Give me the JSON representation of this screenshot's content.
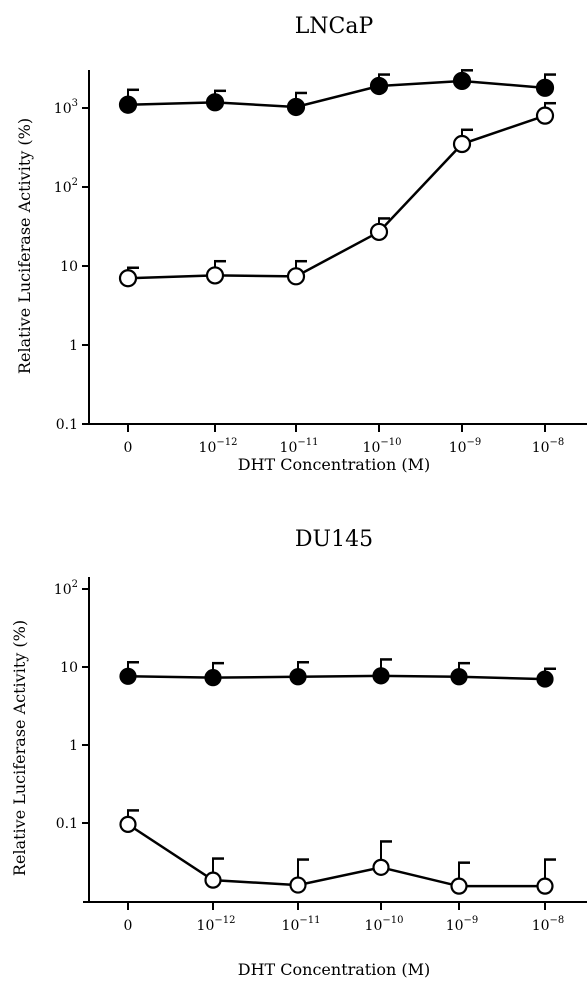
{
  "chart_data": [
    {
      "type": "line",
      "title": "LNCaP",
      "xlabel": "DHT Concentration (M)",
      "ylabel": "Relative Luciferase Activity (%)",
      "categories": [
        "0",
        "1e-12",
        "1e-11",
        "1e-10",
        "1e-9",
        "1e-8"
      ],
      "x_tick_labels": [
        {
          "base": "0",
          "exp": ""
        },
        {
          "base": "10",
          "exp": "−12"
        },
        {
          "base": "10",
          "exp": "−11"
        },
        {
          "base": "10",
          "exp": "−10"
        },
        {
          "base": "10",
          "exp": "−9"
        },
        {
          "base": "10",
          "exp": "−8"
        }
      ],
      "y_scale": "log",
      "ylim": [
        0.1,
        3000
      ],
      "y_ticks": [
        {
          "value": 0.1,
          "base": "0.1",
          "exp": ""
        },
        {
          "value": 1,
          "base": "1",
          "exp": ""
        },
        {
          "value": 10,
          "base": "10",
          "exp": ""
        },
        {
          "value": 100,
          "base": "10",
          "exp": "2"
        },
        {
          "value": 1000,
          "base": "10",
          "exp": "3"
        }
      ],
      "grid": false,
      "series": [
        {
          "marker": "filled-circle",
          "color": "#000000",
          "values": [
            1100,
            1180,
            1030,
            1900,
            2200,
            1800
          ],
          "error_upper": [
            1700,
            1650,
            1550,
            2650,
            3000,
            2650
          ]
        },
        {
          "marker": "open-circle",
          "color": "#000000",
          "values": [
            7,
            7.6,
            7.4,
            27,
            350,
            800
          ],
          "error_upper": [
            9.5,
            11.5,
            11.5,
            40,
            530,
            1150
          ]
        }
      ]
    },
    {
      "type": "line",
      "title": "DU145",
      "xlabel": "DHT Concentration (M)",
      "ylabel": "Relative Luciferase Activity (%)",
      "categories": [
        "0",
        "1e-12",
        "1e-11",
        "1e-10",
        "1e-9",
        "1e-8"
      ],
      "x_tick_labels": [
        {
          "base": "0",
          "exp": ""
        },
        {
          "base": "10",
          "exp": "−12"
        },
        {
          "base": "10",
          "exp": "−11"
        },
        {
          "base": "10",
          "exp": "−10"
        },
        {
          "base": "10",
          "exp": "−9"
        },
        {
          "base": "10",
          "exp": "−8"
        }
      ],
      "y_scale": "log",
      "ylim": [
        0.01,
        300
      ],
      "y_ticks": [
        {
          "value": 0.1,
          "base": "0.1",
          "exp": ""
        },
        {
          "value": 1,
          "base": "1",
          "exp": ""
        },
        {
          "value": 10,
          "base": "10",
          "exp": ""
        },
        {
          "value": 100,
          "base": "10",
          "exp": "2"
        }
      ],
      "grid": false,
      "series": [
        {
          "marker": "filled-circle",
          "color": "#000000",
          "values": [
            7.6,
            7.3,
            7.5,
            7.7,
            7.5,
            7
          ],
          "error_upper": [
            11.5,
            11.2,
            11.5,
            12.5,
            11.2,
            9.5
          ]
        },
        {
          "marker": "open-circle",
          "color": "#000000",
          "values": [
            0.096,
            0.0185,
            0.016,
            0.027,
            0.0155,
            0.0155
          ],
          "error_upper": [
            0.145,
            0.035,
            0.034,
            0.058,
            0.031,
            0.034
          ]
        }
      ]
    }
  ]
}
